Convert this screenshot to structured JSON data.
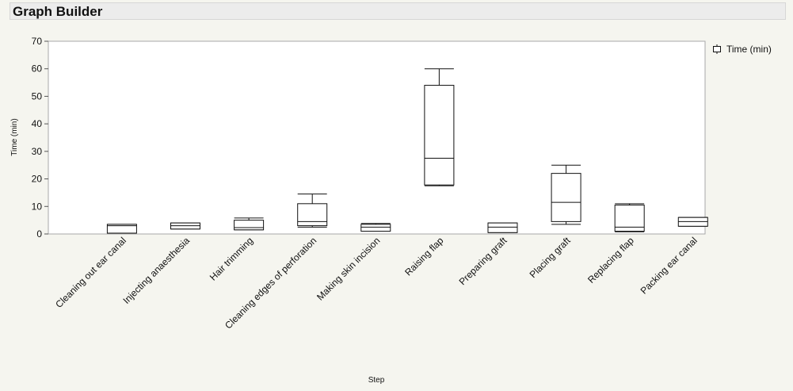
{
  "window": {
    "title": "Graph Builder"
  },
  "legend": {
    "label": "Time (min)"
  },
  "chart_data": {
    "type": "box",
    "title": "",
    "xlabel": "Step",
    "ylabel": "Time (min)",
    "ylim": [
      0,
      70
    ],
    "yticks": [
      0,
      10,
      20,
      30,
      40,
      50,
      60,
      70
    ],
    "grid": false,
    "legend_position": "top-right",
    "categories": [
      "Cleaning out ear canal",
      "Injecting anaesthesia",
      "Hair trimming",
      "Cleaning edges of perforation",
      "Making skin incision",
      "Raising flap",
      "Preparing graft",
      "Placing graft",
      "Replacing flap",
      "Packing ear canal"
    ],
    "series": [
      {
        "name": "Time (min)",
        "boxes": [
          {
            "min": 0.3,
            "q1": 0.3,
            "median": 3.0,
            "q3": 3.5,
            "max": 3.5
          },
          {
            "min": 1.8,
            "q1": 1.8,
            "median": 3.0,
            "q3": 4.0,
            "max": 4.0
          },
          {
            "min": 1.5,
            "q1": 1.5,
            "median": 2.3,
            "q3": 5.0,
            "max": 5.8
          },
          {
            "min": 2.5,
            "q1": 3.0,
            "median": 4.5,
            "q3": 11.0,
            "max": 14.5
          },
          {
            "min": 1.0,
            "q1": 1.0,
            "median": 2.5,
            "q3": 3.5,
            "max": 3.8
          },
          {
            "min": 17.5,
            "q1": 17.8,
            "median": 27.5,
            "q3": 54.0,
            "max": 60.0
          },
          {
            "min": 0.5,
            "q1": 0.5,
            "median": 2.5,
            "q3": 4.0,
            "max": 4.0
          },
          {
            "min": 3.5,
            "q1": 4.5,
            "median": 11.5,
            "q3": 22.0,
            "max": 25.0
          },
          {
            "min": 0.8,
            "q1": 1.0,
            "median": 2.5,
            "q3": 10.5,
            "max": 11.0
          },
          {
            "min": 2.8,
            "q1": 2.8,
            "median": 4.5,
            "q3": 6.0,
            "max": 6.0
          }
        ]
      }
    ]
  }
}
